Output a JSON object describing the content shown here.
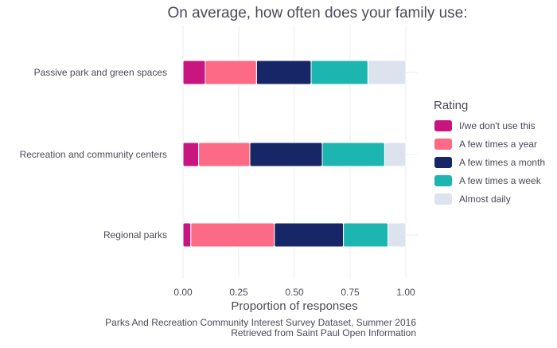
{
  "chart_data": {
    "type": "bar",
    "orientation": "horizontal",
    "stacked": true,
    "title": "On average, how often does your family use:",
    "xlabel": "Proportion of responses",
    "ylabel": "",
    "xlim": [
      0,
      1
    ],
    "x_ticks": [
      "0.00",
      "0.25",
      "0.50",
      "0.75",
      "1.00"
    ],
    "grid": true,
    "legend_position": "right",
    "legend_title": "Rating",
    "categories": [
      "Passive park and green spaces",
      "Recreation and community centers",
      "Regional parks"
    ],
    "series": [
      {
        "name": "I/we don't use this",
        "color": "#c8157f",
        "values": [
          0.1,
          0.07,
          0.035
        ]
      },
      {
        "name": "A few times a year",
        "color": "#fd6a85",
        "values": [
          0.23,
          0.23,
          0.375
        ]
      },
      {
        "name": "A few times a month",
        "color": "#172666",
        "values": [
          0.245,
          0.325,
          0.31
        ]
      },
      {
        "name": "A few times a week",
        "color": "#1db5b0",
        "values": [
          0.255,
          0.28,
          0.2
        ]
      },
      {
        "name": "Almost daily",
        "color": "#dde3ee",
        "values": [
          0.17,
          0.095,
          0.08
        ]
      }
    ],
    "caption": [
      "Parks And Recreation Community Interest Survey Dataset, Summer 2016",
      "Retrieved from Saint Paul Open Information"
    ]
  }
}
